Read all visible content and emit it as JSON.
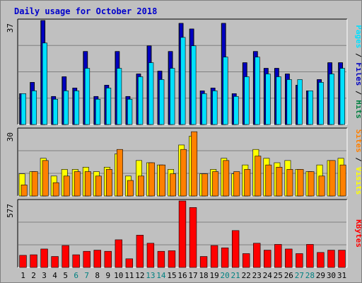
{
  "title": "Daily usage for October 2018",
  "colors": {
    "hits": "#008040",
    "files": "#0000c0",
    "pages": "#00e0ff",
    "visits": "#ffff00",
    "sites": "#ff8000",
    "kbytes": "#ff0000",
    "plot_bg": "#c0c0c0",
    "weekend_label": "#008080",
    "weekday_label": "#000000",
    "title": "#0000cc"
  },
  "chart_data": [
    {
      "type": "bar",
      "panel": "top",
      "yticks": [
        "37"
      ],
      "ylim": [
        0,
        37
      ],
      "side_label": [
        {
          "text": "Pages",
          "color": "#00e0ff"
        },
        {
          "text": " / ",
          "color": "#000000"
        },
        {
          "text": "Files",
          "color": "#0000c0"
        },
        {
          "text": " / ",
          "color": "#000000"
        },
        {
          "text": "Hits",
          "color": "#008040"
        }
      ],
      "categories": [
        "1",
        "2",
        "3",
        "4",
        "5",
        "6",
        "7",
        "8",
        "9",
        "10",
        "11",
        "12",
        "13",
        "14",
        "15",
        "16",
        "17",
        "18",
        "19",
        "20",
        "21",
        "22",
        "23",
        "24",
        "25",
        "26",
        "27",
        "28",
        "29",
        "30",
        "31"
      ],
      "series": [
        {
          "name": "Hits",
          "values": [
            11,
            15,
            37,
            10,
            17,
            13,
            26,
            10,
            14,
            26,
            10,
            18,
            28,
            19,
            26,
            36,
            34,
            12,
            13,
            36,
            11,
            22,
            26,
            20,
            20,
            18,
            14,
            12,
            16,
            22,
            22
          ]
        },
        {
          "name": "Files",
          "values": [
            11,
            15,
            37,
            10,
            17,
            13,
            26,
            10,
            14,
            26,
            10,
            18,
            28,
            19,
            26,
            36,
            34,
            12,
            13,
            36,
            11,
            22,
            26,
            20,
            20,
            18,
            14,
            12,
            16,
            22,
            22
          ]
        },
        {
          "name": "Pages",
          "values": [
            11,
            12,
            29,
            9,
            12,
            12,
            20,
            9,
            13,
            20,
            9,
            17,
            22,
            16,
            20,
            31,
            28,
            11,
            12,
            24,
            10,
            17,
            24,
            18,
            17,
            16,
            16,
            12,
            15,
            18,
            20
          ]
        }
      ]
    },
    {
      "type": "bar",
      "panel": "middle",
      "yticks": [
        "30"
      ],
      "ylim": [
        0,
        30
      ],
      "side_label": [
        {
          "text": "Sites",
          "color": "#ff8000"
        },
        {
          "text": " / ",
          "color": "#000000"
        },
        {
          "text": "Visits",
          "color": "#ffff00"
        }
      ],
      "categories": [
        "1",
        "2",
        "3",
        "4",
        "5",
        "6",
        "7",
        "8",
        "9",
        "10",
        "11",
        "12",
        "13",
        "14",
        "15",
        "16",
        "17",
        "18",
        "19",
        "20",
        "21",
        "22",
        "23",
        "24",
        "25",
        "26",
        "27",
        "28",
        "29",
        "30",
        "31"
      ],
      "series": [
        {
          "name": "Visits",
          "values": [
            10,
            11,
            17,
            9,
            12,
            12,
            13,
            11,
            13,
            19,
            9,
            16,
            15,
            14,
            12,
            23,
            27,
            10,
            12,
            17,
            10,
            14,
            21,
            17,
            15,
            16,
            12,
            11,
            14,
            16,
            17
          ]
        },
        {
          "name": "Sites",
          "values": [
            5,
            11,
            16,
            6,
            9,
            11,
            11,
            9,
            12,
            21,
            7,
            9,
            15,
            14,
            10,
            21,
            29,
            10,
            11,
            16,
            11,
            12,
            18,
            14,
            13,
            12,
            12,
            11,
            9,
            16,
            14
          ]
        }
      ]
    },
    {
      "type": "bar",
      "panel": "bottom",
      "yticks": [
        "577"
      ],
      "ylim": [
        0,
        577
      ],
      "side_label": [
        {
          "text": "KBytes",
          "color": "#ff0000"
        }
      ],
      "categories": [
        "1",
        "2",
        "3",
        "4",
        "5",
        "6",
        "7",
        "8",
        "9",
        "10",
        "11",
        "12",
        "13",
        "14",
        "15",
        "16",
        "17",
        "18",
        "19",
        "20",
        "21",
        "22",
        "23",
        "24",
        "25",
        "26",
        "27",
        "28",
        "29",
        "30",
        "31"
      ],
      "series": [
        {
          "name": "KBytes",
          "values": [
            105,
            110,
            160,
            95,
            190,
            110,
            140,
            150,
            140,
            240,
            75,
            280,
            210,
            140,
            145,
            577,
            520,
            95,
            190,
            170,
            320,
            120,
            210,
            150,
            200,
            160,
            120,
            200,
            130,
            150,
            150
          ]
        }
      ]
    }
  ],
  "x_axis": {
    "labels": [
      "1",
      "2",
      "3",
      "4",
      "5",
      "6",
      "7",
      "8",
      "9",
      "10",
      "11",
      "12",
      "13",
      "14",
      "15",
      "16",
      "17",
      "18",
      "19",
      "20",
      "21",
      "22",
      "23",
      "24",
      "25",
      "26",
      "27",
      "28",
      "29",
      "30",
      "31"
    ],
    "weekend_days": [
      "6",
      "7",
      "13",
      "14",
      "20",
      "21",
      "27",
      "28"
    ]
  }
}
